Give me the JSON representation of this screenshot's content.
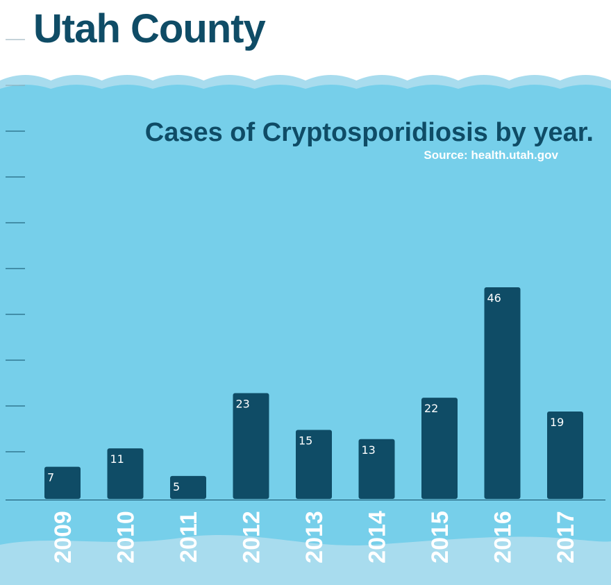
{
  "header": {
    "title": "Utah County"
  },
  "colors": {
    "background": "#76cfea",
    "bar": "#0f4c66",
    "title": "#0f4c66",
    "wave_light": "#a8dcee",
    "label": "#ffffff"
  },
  "chart_data": {
    "type": "bar",
    "title": "Cases of Cryptosporidiosis by year.",
    "subtitle": "Source: health.utah.gov",
    "categories": [
      "2009",
      "2010",
      "2011",
      "2012",
      "2013",
      "2014",
      "2015",
      "2016",
      "2017"
    ],
    "values": [
      7,
      11,
      5,
      23,
      15,
      13,
      22,
      46,
      19
    ],
    "xlabel": "",
    "ylabel": "",
    "ylim": [
      0,
      47
    ],
    "grid": false,
    "legend": "none",
    "tick_label_orientation": "vertical"
  }
}
